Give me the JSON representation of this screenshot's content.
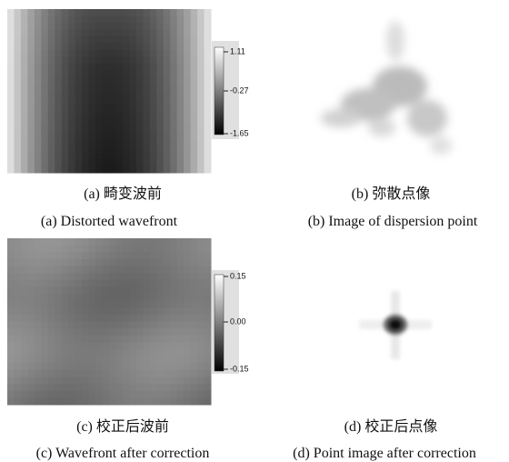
{
  "panels": [
    {
      "caption_zh": "(a) 畸变波前",
      "caption_en": "(a) Distorted wavefront",
      "colorbar_ticks": [
        "1.11",
        "-0.27",
        "-1.65"
      ]
    },
    {
      "caption_zh": "(b) 弥散点像",
      "caption_en": "(b) Image of dispersion point"
    },
    {
      "caption_zh": "(c) 校正后波前",
      "caption_en": "(c) Wavefront after correction",
      "colorbar_ticks": [
        "0.15",
        "0.00",
        "-0.15"
      ]
    },
    {
      "caption_zh": "(d) 校正后点像",
      "caption_en": "(d) Point image after correction"
    }
  ]
}
